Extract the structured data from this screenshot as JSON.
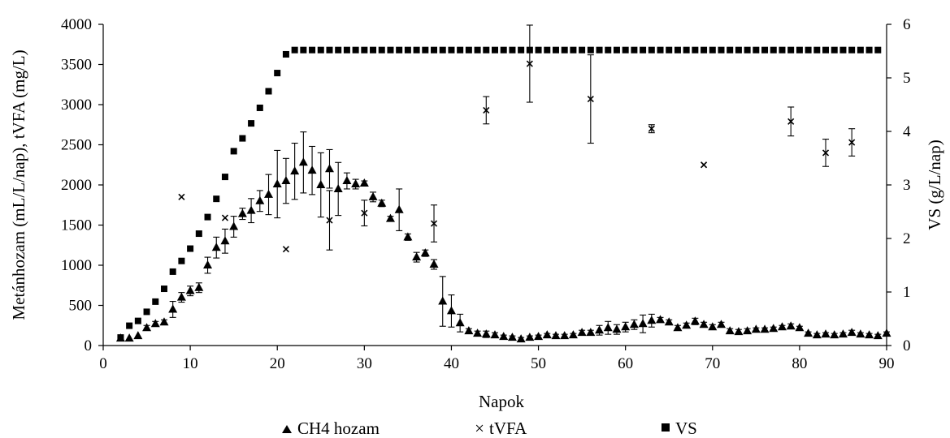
{
  "chart_data": {
    "type": "scatter",
    "title": "",
    "xlabel": "Napok",
    "ylabel_left": "Metánhozam (mL/L/nap), tVFA (mg/L)",
    "ylabel_right": "VS (g/L/nap)",
    "xlim": [
      0,
      90
    ],
    "ylim_left": [
      0,
      4000
    ],
    "ylim_right": [
      0,
      6
    ],
    "x_ticks": [
      "0",
      "10",
      "20",
      "30",
      "40",
      "50",
      "60",
      "70",
      "80",
      "90"
    ],
    "y_left_ticks": [
      "0",
      "500",
      "1000",
      "1500",
      "2000",
      "2500",
      "3000",
      "3500",
      "4000"
    ],
    "y_right_ticks": [
      "0",
      "1",
      "2",
      "3",
      "4",
      "5",
      "6"
    ],
    "grid": false,
    "legend_position": "bottom",
    "series": [
      {
        "name": "CH4 hozam",
        "axis": "left",
        "marker": "triangle",
        "points": [
          {
            "x": 2,
            "y": 90,
            "err": 0
          },
          {
            "x": 3,
            "y": 90,
            "err": 0
          },
          {
            "x": 4,
            "y": 120,
            "err": 0
          },
          {
            "x": 5,
            "y": 220,
            "err": 30
          },
          {
            "x": 6,
            "y": 270,
            "err": 30
          },
          {
            "x": 7,
            "y": 290,
            "err": 30
          },
          {
            "x": 8,
            "y": 450,
            "err": 100
          },
          {
            "x": 9,
            "y": 600,
            "err": 60
          },
          {
            "x": 10,
            "y": 680,
            "err": 60
          },
          {
            "x": 11,
            "y": 720,
            "err": 60
          },
          {
            "x": 12,
            "y": 1000,
            "err": 100
          },
          {
            "x": 13,
            "y": 1220,
            "err": 130
          },
          {
            "x": 14,
            "y": 1300,
            "err": 150
          },
          {
            "x": 15,
            "y": 1480,
            "err": 130
          },
          {
            "x": 16,
            "y": 1640,
            "err": 70
          },
          {
            "x": 17,
            "y": 1680,
            "err": 150
          },
          {
            "x": 18,
            "y": 1800,
            "err": 130
          },
          {
            "x": 19,
            "y": 1880,
            "err": 250
          },
          {
            "x": 20,
            "y": 2010,
            "err": 420
          },
          {
            "x": 21,
            "y": 2050,
            "err": 280
          },
          {
            "x": 22,
            "y": 2170,
            "err": 350
          },
          {
            "x": 23,
            "y": 2280,
            "err": 380
          },
          {
            "x": 24,
            "y": 2180,
            "err": 300
          },
          {
            "x": 25,
            "y": 2000,
            "err": 400
          },
          {
            "x": 26,
            "y": 2200,
            "err": 240
          },
          {
            "x": 27,
            "y": 1950,
            "err": 330
          },
          {
            "x": 28,
            "y": 2050,
            "err": 100
          },
          {
            "x": 29,
            "y": 2010,
            "err": 60
          },
          {
            "x": 30,
            "y": 2020,
            "err": 30
          },
          {
            "x": 31,
            "y": 1850,
            "err": 60
          },
          {
            "x": 32,
            "y": 1770,
            "err": 40
          },
          {
            "x": 33,
            "y": 1580,
            "err": 30
          },
          {
            "x": 34,
            "y": 1690,
            "err": 260
          },
          {
            "x": 35,
            "y": 1350,
            "err": 40
          },
          {
            "x": 36,
            "y": 1100,
            "err": 60
          },
          {
            "x": 37,
            "y": 1150,
            "err": 40
          },
          {
            "x": 38,
            "y": 1010,
            "err": 60
          },
          {
            "x": 39,
            "y": 550,
            "err": 310
          },
          {
            "x": 40,
            "y": 430,
            "err": 200
          },
          {
            "x": 41,
            "y": 280,
            "err": 110
          },
          {
            "x": 42,
            "y": 180,
            "err": 30
          },
          {
            "x": 43,
            "y": 150,
            "err": 30
          },
          {
            "x": 44,
            "y": 140,
            "err": 40
          },
          {
            "x": 45,
            "y": 130,
            "err": 30
          },
          {
            "x": 46,
            "y": 110,
            "err": 20
          },
          {
            "x": 47,
            "y": 100,
            "err": 20
          },
          {
            "x": 48,
            "y": 80,
            "err": 20
          },
          {
            "x": 49,
            "y": 100,
            "err": 20
          },
          {
            "x": 50,
            "y": 110,
            "err": 20
          },
          {
            "x": 51,
            "y": 130,
            "err": 20
          },
          {
            "x": 52,
            "y": 120,
            "err": 20
          },
          {
            "x": 53,
            "y": 120,
            "err": 20
          },
          {
            "x": 54,
            "y": 130,
            "err": 20
          },
          {
            "x": 55,
            "y": 160,
            "err": 30
          },
          {
            "x": 56,
            "y": 160,
            "err": 30
          },
          {
            "x": 57,
            "y": 190,
            "err": 60
          },
          {
            "x": 58,
            "y": 220,
            "err": 80
          },
          {
            "x": 59,
            "y": 200,
            "err": 60
          },
          {
            "x": 60,
            "y": 230,
            "err": 60
          },
          {
            "x": 61,
            "y": 260,
            "err": 60
          },
          {
            "x": 62,
            "y": 270,
            "err": 110
          },
          {
            "x": 63,
            "y": 310,
            "err": 80
          },
          {
            "x": 64,
            "y": 320,
            "err": 30
          },
          {
            "x": 65,
            "y": 290,
            "err": 30
          },
          {
            "x": 66,
            "y": 220,
            "err": 30
          },
          {
            "x": 67,
            "y": 250,
            "err": 30
          },
          {
            "x": 68,
            "y": 300,
            "err": 40
          },
          {
            "x": 69,
            "y": 260,
            "err": 30
          },
          {
            "x": 70,
            "y": 230,
            "err": 30
          },
          {
            "x": 71,
            "y": 260,
            "err": 30
          },
          {
            "x": 72,
            "y": 180,
            "err": 30
          },
          {
            "x": 73,
            "y": 170,
            "err": 30
          },
          {
            "x": 74,
            "y": 180,
            "err": 30
          },
          {
            "x": 75,
            "y": 200,
            "err": 20
          },
          {
            "x": 76,
            "y": 200,
            "err": 20
          },
          {
            "x": 77,
            "y": 210,
            "err": 20
          },
          {
            "x": 78,
            "y": 230,
            "err": 20
          },
          {
            "x": 79,
            "y": 240,
            "err": 30
          },
          {
            "x": 80,
            "y": 220,
            "err": 20
          },
          {
            "x": 81,
            "y": 150,
            "err": 20
          },
          {
            "x": 82,
            "y": 130,
            "err": 20
          },
          {
            "x": 83,
            "y": 140,
            "err": 20
          },
          {
            "x": 84,
            "y": 130,
            "err": 20
          },
          {
            "x": 85,
            "y": 140,
            "err": 20
          },
          {
            "x": 86,
            "y": 160,
            "err": 30
          },
          {
            "x": 87,
            "y": 140,
            "err": 20
          },
          {
            "x": 88,
            "y": 130,
            "err": 20
          },
          {
            "x": 89,
            "y": 120,
            "err": 20
          },
          {
            "x": 90,
            "y": 150,
            "err": 20
          }
        ]
      },
      {
        "name": "tVFA",
        "axis": "left",
        "marker": "x",
        "points": [
          {
            "x": 9,
            "y": 1850,
            "err": 0
          },
          {
            "x": 14,
            "y": 1590,
            "err": 0
          },
          {
            "x": 21,
            "y": 1200,
            "err": 0
          },
          {
            "x": 26,
            "y": 1560,
            "err": 370
          },
          {
            "x": 30,
            "y": 1650,
            "err": 160
          },
          {
            "x": 38,
            "y": 1520,
            "err": 230
          },
          {
            "x": 44,
            "y": 2930,
            "err": 170
          },
          {
            "x": 49,
            "y": 3510,
            "err": 480
          },
          {
            "x": 56,
            "y": 3070,
            "err": 550
          },
          {
            "x": 63,
            "y": 2700,
            "err": 50
          },
          {
            "x": 69,
            "y": 2250,
            "err": 0
          },
          {
            "x": 79,
            "y": 2790,
            "err": 180
          },
          {
            "x": 83,
            "y": 2400,
            "err": 170
          },
          {
            "x": 86,
            "y": 2530,
            "err": 170
          }
        ]
      },
      {
        "name": "VS",
        "axis": "right",
        "marker": "square",
        "points": [
          {
            "x": 2,
            "y": 0.15
          },
          {
            "x": 3,
            "y": 0.37
          },
          {
            "x": 4,
            "y": 0.46
          },
          {
            "x": 5,
            "y": 0.63
          },
          {
            "x": 6,
            "y": 0.82
          },
          {
            "x": 7,
            "y": 1.06
          },
          {
            "x": 8,
            "y": 1.38
          },
          {
            "x": 9,
            "y": 1.58
          },
          {
            "x": 10,
            "y": 1.81
          },
          {
            "x": 11,
            "y": 2.09
          },
          {
            "x": 12,
            "y": 2.4
          },
          {
            "x": 13,
            "y": 2.74
          },
          {
            "x": 14,
            "y": 3.15
          },
          {
            "x": 15,
            "y": 3.63
          },
          {
            "x": 16,
            "y": 3.87
          },
          {
            "x": 17,
            "y": 4.15
          },
          {
            "x": 18,
            "y": 4.44
          },
          {
            "x": 19,
            "y": 4.75
          },
          {
            "x": 20,
            "y": 5.09
          },
          {
            "x": 21,
            "y": 5.44
          },
          {
            "x": 22,
            "y": 5.52
          },
          {
            "x": 23,
            "y": 5.52
          },
          {
            "x": 24,
            "y": 5.52
          },
          {
            "x": 25,
            "y": 5.52
          },
          {
            "x": 26,
            "y": 5.52
          },
          {
            "x": 27,
            "y": 5.52
          },
          {
            "x": 28,
            "y": 5.52
          },
          {
            "x": 29,
            "y": 5.52
          },
          {
            "x": 30,
            "y": 5.52
          },
          {
            "x": 31,
            "y": 5.52
          },
          {
            "x": 32,
            "y": 5.52
          },
          {
            "x": 33,
            "y": 5.52
          },
          {
            "x": 34,
            "y": 5.52
          },
          {
            "x": 35,
            "y": 5.52
          },
          {
            "x": 36,
            "y": 5.52
          },
          {
            "x": 37,
            "y": 5.52
          },
          {
            "x": 38,
            "y": 5.52
          },
          {
            "x": 39,
            "y": 5.52
          },
          {
            "x": 40,
            "y": 5.52
          },
          {
            "x": 41,
            "y": 5.52
          },
          {
            "x": 42,
            "y": 5.52
          },
          {
            "x": 43,
            "y": 5.52
          },
          {
            "x": 44,
            "y": 5.52
          },
          {
            "x": 45,
            "y": 5.52
          },
          {
            "x": 46,
            "y": 5.52
          },
          {
            "x": 47,
            "y": 5.52
          },
          {
            "x": 48,
            "y": 5.52
          },
          {
            "x": 49,
            "y": 5.52
          },
          {
            "x": 50,
            "y": 5.52
          },
          {
            "x": 51,
            "y": 5.52
          },
          {
            "x": 52,
            "y": 5.52
          },
          {
            "x": 53,
            "y": 5.52
          },
          {
            "x": 54,
            "y": 5.52
          },
          {
            "x": 55,
            "y": 5.52
          },
          {
            "x": 56,
            "y": 5.52
          },
          {
            "x": 57,
            "y": 5.52
          },
          {
            "x": 58,
            "y": 5.52
          },
          {
            "x": 59,
            "y": 5.52
          },
          {
            "x": 60,
            "y": 5.52
          },
          {
            "x": 61,
            "y": 5.52
          },
          {
            "x": 62,
            "y": 5.52
          },
          {
            "x": 63,
            "y": 5.52
          },
          {
            "x": 64,
            "y": 5.52
          },
          {
            "x": 65,
            "y": 5.52
          },
          {
            "x": 66,
            "y": 5.52
          },
          {
            "x": 67,
            "y": 5.52
          },
          {
            "x": 68,
            "y": 5.52
          },
          {
            "x": 69,
            "y": 5.52
          },
          {
            "x": 70,
            "y": 5.52
          },
          {
            "x": 71,
            "y": 5.52
          },
          {
            "x": 72,
            "y": 5.52
          },
          {
            "x": 73,
            "y": 5.52
          },
          {
            "x": 74,
            "y": 5.52
          },
          {
            "x": 75,
            "y": 5.52
          },
          {
            "x": 76,
            "y": 5.52
          },
          {
            "x": 77,
            "y": 5.52
          },
          {
            "x": 78,
            "y": 5.52
          },
          {
            "x": 79,
            "y": 5.52
          },
          {
            "x": 80,
            "y": 5.52
          },
          {
            "x": 81,
            "y": 5.52
          },
          {
            "x": 82,
            "y": 5.52
          },
          {
            "x": 83,
            "y": 5.52
          },
          {
            "x": 84,
            "y": 5.52
          },
          {
            "x": 85,
            "y": 5.52
          },
          {
            "x": 86,
            "y": 5.52
          },
          {
            "x": 87,
            "y": 5.52
          },
          {
            "x": 88,
            "y": 5.52
          },
          {
            "x": 89,
            "y": 5.52
          }
        ]
      }
    ]
  }
}
